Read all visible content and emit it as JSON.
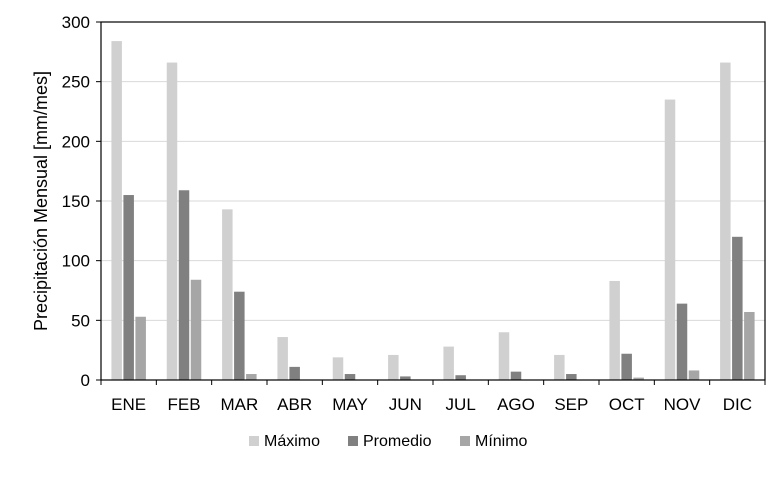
{
  "chart_data": {
    "type": "bar",
    "title": "",
    "xlabel": "",
    "ylabel": "Precipitación Mensual [mm/mes]",
    "ylim": [
      0,
      300
    ],
    "yticks": [
      0,
      50,
      100,
      150,
      200,
      250,
      300
    ],
    "grid": true,
    "legend_position": "bottom",
    "categories": [
      "ENE",
      "FEB",
      "MAR",
      "ABR",
      "MAY",
      "JUN",
      "JUL",
      "AGO",
      "SEP",
      "OCT",
      "NOV",
      "DIC"
    ],
    "series": [
      {
        "name": "Máximo",
        "color": "#d0d0d0",
        "values": [
          284,
          266,
          143,
          36,
          19,
          21,
          28,
          40,
          21,
          83,
          235,
          266
        ]
      },
      {
        "name": "Promedio",
        "color": "#808080",
        "values": [
          155,
          159,
          74,
          11,
          5,
          3,
          4,
          7,
          5,
          22,
          64,
          120
        ]
      },
      {
        "name": "Mínimo",
        "color": "#a6a6a6",
        "values": [
          53,
          84,
          5,
          0,
          0,
          0,
          0,
          0,
          0,
          2,
          8,
          57
        ]
      }
    ]
  }
}
